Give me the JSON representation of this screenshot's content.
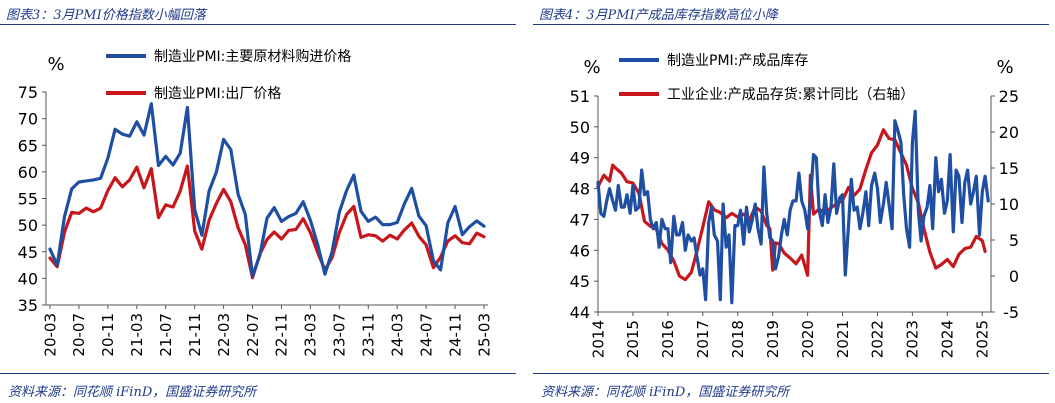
{
  "charts": [
    {
      "title": "图表3：3月PMI价格指数小幅回落",
      "source": "资料来源：同花顺 iFinD，国盛证券研究所",
      "chart_data": {
        "type": "line",
        "y_unit": "%",
        "ylim": [
          35,
          75
        ],
        "yticks": [
          35,
          40,
          45,
          50,
          55,
          60,
          65,
          70,
          75
        ],
        "xticks": [
          "20-03",
          "20-07",
          "20-11",
          "21-03",
          "21-07",
          "21-11",
          "22-03",
          "22-07",
          "22-11",
          "23-03",
          "23-07",
          "23-11",
          "24-03",
          "24-07",
          "24-11",
          "25-03"
        ],
        "x": [
          "20-03",
          "20-04",
          "20-05",
          "20-06",
          "20-07",
          "20-08",
          "20-09",
          "20-10",
          "20-11",
          "20-12",
          "21-01",
          "21-02",
          "21-03",
          "21-04",
          "21-05",
          "21-06",
          "21-07",
          "21-08",
          "21-09",
          "21-10",
          "21-11",
          "21-12",
          "22-01",
          "22-02",
          "22-03",
          "22-04",
          "22-05",
          "22-06",
          "22-07",
          "22-08",
          "22-09",
          "22-10",
          "22-11",
          "22-12",
          "23-01",
          "23-02",
          "23-03",
          "23-04",
          "23-05",
          "23-06",
          "23-07",
          "23-08",
          "23-09",
          "23-10",
          "23-11",
          "23-12",
          "24-01",
          "24-02",
          "24-03",
          "24-04",
          "24-05",
          "24-06",
          "24-07",
          "24-08",
          "24-09",
          "24-10",
          "24-11",
          "24-12",
          "25-01",
          "25-02",
          "25-03"
        ],
        "grid": false,
        "legend_position": "top",
        "series": [
          {
            "name": "制造业PMI:主要原材料购进价格",
            "color": "#1f4fa3",
            "values": [
              45.5,
              42.5,
              51.6,
              56.8,
              58.1,
              58.3,
              58.5,
              58.8,
              62.6,
              68.0,
              67.1,
              66.7,
              69.4,
              66.9,
              72.8,
              61.2,
              62.9,
              61.3,
              63.5,
              72.1,
              52.9,
              48.1,
              56.4,
              60.0,
              66.1,
              64.2,
              55.8,
              52.0,
              40.4,
              44.3,
              51.3,
              53.3,
              50.7,
              51.6,
              52.2,
              54.4,
              50.9,
              46.4,
              40.8,
              45.0,
              52.4,
              56.5,
              59.4,
              52.6,
              50.7,
              51.5,
              50.1,
              50.1,
              50.5,
              54.0,
              56.9,
              51.7,
              49.9,
              43.3,
              41.6,
              50.4,
              53.5,
              48.2,
              49.7,
              50.8,
              49.8
            ]
          },
          {
            "name": "制造业PMI:出厂价格",
            "color": "#c8161d",
            "values": [
              43.8,
              42.2,
              48.7,
              52.4,
              52.2,
              53.2,
              52.5,
              53.2,
              56.5,
              58.9,
              57.2,
              58.5,
              60.9,
              57.0,
              60.6,
              51.4,
              53.8,
              53.4,
              56.4,
              61.1,
              48.9,
              45.5,
              50.9,
              54.1,
              56.7,
              54.4,
              49.5,
              46.3,
              40.1,
              44.5,
              47.3,
              48.7,
              47.4,
              49.0,
              49.2,
              51.2,
              48.6,
              44.9,
              41.6,
              43.9,
              48.6,
              52.0,
              53.5,
              47.7,
              48.2,
              48.0,
              47.0,
              48.1,
              47.4,
              49.1,
              50.4,
              47.9,
              46.3,
              42.0,
              44.0,
              47.0,
              48.0,
              46.7,
              46.5,
              48.5,
              47.8
            ]
          }
        ]
      }
    },
    {
      "title": "图表4：3月PMI产成品库存指数高位小降",
      "source": "资料来源：同花顺 iFinD，国盛证券研究所",
      "chart_data": {
        "type": "line",
        "y_unit": "%",
        "y2_unit": "%",
        "ylim": [
          44,
          51
        ],
        "yticks": [
          44,
          45,
          46,
          47,
          48,
          49,
          50,
          51
        ],
        "y2lim": [
          -5,
          25
        ],
        "y2ticks": [
          -5,
          0,
          5,
          10,
          15,
          20,
          25
        ],
        "xlim": [
          2014,
          2025.25
        ],
        "xticks": [
          "2014",
          "2015",
          "2016",
          "2017",
          "2018",
          "2019",
          "2020",
          "2021",
          "2022",
          "2023",
          "2024",
          "2025"
        ],
        "grid": false,
        "legend_position": "top",
        "series": [
          {
            "name": "制造业PMI:产成品库存",
            "color": "#1f4fa3",
            "axis": "left",
            "x": [
              2014.0,
              2014.08,
              2014.17,
              2014.25,
              2014.33,
              2014.42,
              2014.5,
              2014.58,
              2014.67,
              2014.75,
              2014.83,
              2014.92,
              2015.0,
              2015.08,
              2015.17,
              2015.25,
              2015.33,
              2015.42,
              2015.5,
              2015.58,
              2015.67,
              2015.75,
              2015.83,
              2015.92,
              2016.0,
              2016.08,
              2016.17,
              2016.25,
              2016.33,
              2016.42,
              2016.5,
              2016.58,
              2016.67,
              2016.75,
              2016.83,
              2016.92,
              2017.0,
              2017.08,
              2017.17,
              2017.25,
              2017.33,
              2017.42,
              2017.5,
              2017.58,
              2017.67,
              2017.75,
              2017.83,
              2017.92,
              2018.0,
              2018.08,
              2018.17,
              2018.25,
              2018.33,
              2018.42,
              2018.5,
              2018.58,
              2018.67,
              2018.75,
              2018.83,
              2018.92,
              2019.0,
              2019.08,
              2019.17,
              2019.25,
              2019.33,
              2019.42,
              2019.5,
              2019.58,
              2019.67,
              2019.75,
              2019.83,
              2019.92,
              2020.0,
              2020.08,
              2020.17,
              2020.25,
              2020.33,
              2020.42,
              2020.5,
              2020.58,
              2020.67,
              2020.75,
              2020.83,
              2020.92,
              2021.0,
              2021.08,
              2021.17,
              2021.25,
              2021.33,
              2021.42,
              2021.5,
              2021.58,
              2021.67,
              2021.75,
              2021.83,
              2021.92,
              2022.0,
              2022.08,
              2022.17,
              2022.25,
              2022.33,
              2022.42,
              2022.5,
              2022.58,
              2022.67,
              2022.75,
              2022.83,
              2022.92,
              2023.0,
              2023.08,
              2023.17,
              2023.25,
              2023.33,
              2023.42,
              2023.5,
              2023.58,
              2023.67,
              2023.75,
              2023.83,
              2023.92,
              2024.0,
              2024.08,
              2024.17,
              2024.25,
              2024.33,
              2024.42,
              2024.5,
              2024.58,
              2024.67,
              2024.75,
              2024.83,
              2024.92,
              2025.0,
              2025.08,
              2025.17
            ],
            "values": [
              48.2,
              47.2,
              47.1,
              47.6,
              48.0,
              47.6,
              47.3,
              48.1,
              47.4,
              47.4,
              47.8,
              47.2,
              48.1,
              47.3,
              47.4,
              48.6,
              47.8,
              47.9,
              47.0,
              46.7,
              46.9,
              46.1,
              47.0,
              46.7,
              46.7,
              45.6,
              47.1,
              46.5,
              46.5,
              46.9,
              46.0,
              46.5,
              46.3,
              46.4,
              45.8,
              45.2,
              45.4,
              44.4,
              46.9,
              47.4,
              46.5,
              46.3,
              44.4,
              47.5,
              46.1,
              46.5,
              44.3,
              46.8,
              46.8,
              47.3,
              46.2,
              47.4,
              46.6,
              47.0,
              47.5,
              46.7,
              46.2,
              48.7,
              47.2,
              46.4,
              46.3,
              45.4,
              45.8,
              46.5,
              47.0,
              46.5,
              47.3,
              47.6,
              47.6,
              48.5,
              47.6,
              47.3,
              46.7,
              47.6,
              49.1,
              49.0,
              47.3,
              46.8,
              47.8,
              46.9,
              47.4,
              48.8,
              47.2,
              47.7,
              47.8,
              45.2,
              46.8,
              48.3,
              47.3,
              47.4,
              46.7,
              47.2,
              47.9,
              46.8,
              48.1,
              48.5,
              48.0,
              46.9,
              47.5,
              48.2,
              47.5,
              46.7,
              50.2,
              49.9,
              49.5,
              47.8,
              46.7,
              46.1,
              49.5,
              50.5,
              47.3,
              46.3,
              47.1,
              47.4,
              48.1,
              46.7,
              49.0,
              47.9,
              48.3,
              47.2,
              47.6,
              49.1,
              46.6,
              48.6,
              48.4,
              46.9,
              48.2,
              48.6,
              47.5,
              47.9,
              48.4,
              46.5,
              47.9,
              48.4,
              47.6
            ]
          },
          {
            "name": "工业企业:产成品存货:累计同比（右轴）",
            "color": "#c8161d",
            "axis": "right",
            "x": [
              2014.0,
              2014.17,
              2014.33,
              2014.42,
              2014.5,
              2014.67,
              2014.83,
              2015.0,
              2015.17,
              2015.33,
              2015.5,
              2015.67,
              2015.83,
              2016.0,
              2016.17,
              2016.33,
              2016.5,
              2016.67,
              2016.83,
              2017.0,
              2017.17,
              2017.33,
              2017.5,
              2017.67,
              2017.83,
              2018.0,
              2018.17,
              2018.33,
              2018.5,
              2018.67,
              2018.83,
              2018.92,
              2019.0,
              2019.08,
              2019.17,
              2019.33,
              2019.5,
              2019.67,
              2019.83,
              2020.0,
              2020.08,
              2020.17,
              2020.33,
              2020.5,
              2020.67,
              2020.83,
              2021.0,
              2021.17,
              2021.33,
              2021.5,
              2021.67,
              2021.83,
              2022.0,
              2022.17,
              2022.33,
              2022.5,
              2022.67,
              2022.83,
              2023.0,
              2023.17,
              2023.33,
              2023.5,
              2023.67,
              2023.83,
              2024.0,
              2024.17,
              2024.33,
              2024.5,
              2024.67,
              2024.83,
              2025.0,
              2025.08
            ],
            "values": [
              12.4,
              14.0,
              13.2,
              15.4,
              15.0,
              14.3,
              13.1,
              12.9,
              11.5,
              7.6,
              6.9,
              6.5,
              4.5,
              3.6,
              2.1,
              0.0,
              -0.5,
              0.5,
              3.4,
              6.8,
              10.3,
              9.2,
              8.8,
              8.1,
              8.7,
              8.2,
              8.6,
              7.7,
              9.6,
              9.0,
              7.0,
              6.6,
              0.8,
              4.6,
              4.5,
              3.2,
              2.5,
              1.7,
              2.9,
              0.1,
              14.0,
              8.6,
              9.3,
              8.7,
              9.5,
              10.0,
              10.5,
              12.3,
              11.2,
              12.1,
              14.8,
              17.1,
              18.2,
              20.3,
              19.1,
              18.9,
              17.1,
              15.4,
              12.2,
              10.2,
              6.6,
              3.3,
              1.1,
              1.6,
              2.3,
              1.3,
              3.0,
              3.8,
              4.0,
              5.5,
              4.9,
              3.4
            ]
          }
        ]
      }
    }
  ]
}
